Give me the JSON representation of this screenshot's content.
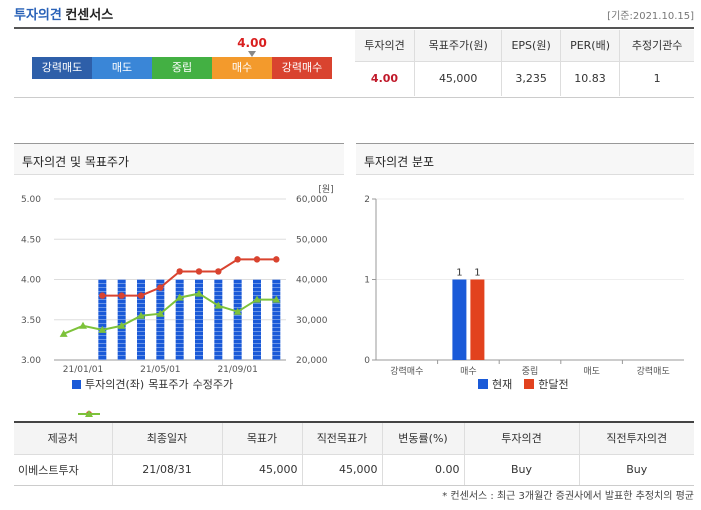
{
  "header": {
    "title_main": "투자의견",
    "title_sub": "컨센서스",
    "date": "[기준:2021.10.15]"
  },
  "opinion_scale": {
    "value": "4.00",
    "selected": "매수",
    "segments": [
      "강력매도",
      "매도",
      "중립",
      "매수",
      "강력매수"
    ],
    "colors": [
      "#2e5fa9",
      "#3a86d7",
      "#43b043",
      "#f39a2c",
      "#d9432f"
    ]
  },
  "summary": {
    "headers": [
      "투자의견",
      "목표주가(원)",
      "EPS(원)",
      "PER(배)",
      "추정기관수"
    ],
    "values": [
      "4.00",
      "45,000",
      "3,235",
      "10.83",
      "1"
    ]
  },
  "chart_left": {
    "title": "투자의견 및 목표주가",
    "unit_label": "[원]",
    "legend": [
      "투자의견(좌)",
      "목표주가",
      "수정주가"
    ]
  },
  "chart_right": {
    "title": "투자의견 분포",
    "legend": [
      "현재",
      "한달전"
    ]
  },
  "chart_data": [
    {
      "type": "bar+line",
      "title": "투자의견 및 목표주가",
      "x_tick_labels": [
        "21/01/01",
        "21/05/01",
        "21/09/01"
      ],
      "y_left": {
        "ticks": [
          "5.00",
          "4.50",
          "4.00",
          "3.50",
          "3.00"
        ],
        "range": [
          3.0,
          5.0
        ]
      },
      "y_right": {
        "ticks": [
          "60,000",
          "50,000",
          "40,000",
          "30,000",
          "20,000"
        ],
        "range": [
          20000,
          60000
        ],
        "unit": "[원]"
      },
      "series": [
        {
          "name": "투자의견(좌)",
          "kind": "bar",
          "axis": "left",
          "color": "#1a5ad8",
          "values": [
            null,
            null,
            4.0,
            4.0,
            4.0,
            4.0,
            4.0,
            4.0,
            4.0,
            4.0,
            4.0,
            4.0
          ]
        },
        {
          "name": "목표주가",
          "kind": "line",
          "axis": "right",
          "color": "#d9432f",
          "values": [
            null,
            null,
            36000,
            36000,
            36000,
            38000,
            42000,
            42000,
            42000,
            45000,
            45000,
            45000
          ]
        },
        {
          "name": "수정주가",
          "kind": "line",
          "axis": "right",
          "color": "#7dc23a",
          "values": [
            26500,
            28500,
            27500,
            28500,
            31000,
            31500,
            35500,
            36500,
            33500,
            32000,
            35000,
            35000
          ]
        }
      ]
    },
    {
      "type": "bar",
      "title": "투자의견 분포",
      "categories": [
        "강력매수",
        "매수",
        "중립",
        "매도",
        "강력매도"
      ],
      "y_ticks": [
        "2",
        "1",
        "0"
      ],
      "ylim": [
        0,
        2
      ],
      "series": [
        {
          "name": "현재",
          "color": "#1a5ad8",
          "values": [
            0,
            1,
            0,
            0,
            0
          ]
        },
        {
          "name": "한달전",
          "color": "#e2421e",
          "values": [
            0,
            1,
            0,
            0,
            0
          ]
        }
      ]
    }
  ],
  "detail_table": {
    "headers": [
      "제공처",
      "최종일자",
      "목표가",
      "직전목표가",
      "변동률(%)",
      "투자의견",
      "직전투자의견"
    ],
    "rows": [
      [
        "이베스트투자",
        "21/08/31",
        "45,000",
        "45,000",
        "0.00",
        "Buy",
        "Buy"
      ]
    ]
  },
  "footnote": "* 컨센서스 : 최근 3개월간 증권사에서 발표한 추정치의 평균"
}
